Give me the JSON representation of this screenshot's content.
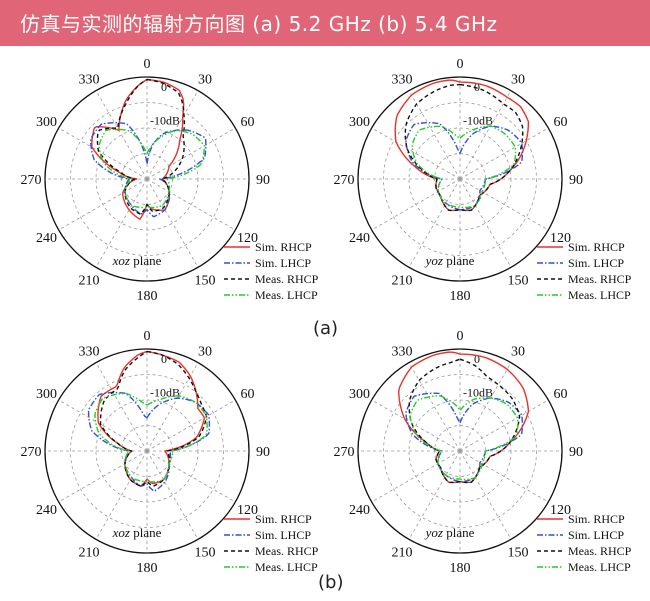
{
  "page": {
    "title": "仿真与实测的辐射方向图 (a) 5.2 GHz (b) 5.4 GHz",
    "sub_caption_a": "(a)",
    "sub_caption_b": "(b)"
  },
  "chart_data": [
    {
      "type": "polar-line",
      "panel": "(a)",
      "plane_label": [
        "xoz",
        " plane"
      ],
      "angle_ticks": [
        "0",
        "30",
        "60",
        "90",
        "120",
        "150",
        "180",
        "210",
        "240",
        "270",
        "300",
        "330"
      ],
      "inner_zero_label": "0",
      "ring_label": "-10dB",
      "rrange_dB": [
        -40,
        0
      ],
      "legend": [
        "Sim. RHCP",
        "Sim. LHCP",
        "Meas. RHCP",
        "Meas. LHCP"
      ],
      "series": [
        {
          "name": "Sim. RHCP",
          "color": "#e8322a",
          "dash": "none",
          "angles": [
            0,
            10,
            20,
            25,
            30,
            40,
            60,
            90,
            120,
            150,
            170,
            180,
            190,
            210,
            240,
            270,
            285,
            300,
            315,
            330,
            345,
            355
          ],
          "values": [
            -1,
            -1.5,
            -3,
            -6,
            -12,
            -20,
            -30,
            -34,
            -30,
            -26,
            -28,
            -30,
            -24,
            -26,
            -29,
            -36,
            -28,
            -15,
            -11,
            -18,
            -8,
            -3
          ]
        },
        {
          "name": "Sim. LHCP",
          "color": "#2f50d8",
          "dash": "6,2,1.5,2",
          "angles": [
            0,
            10,
            20,
            30,
            40,
            55,
            70,
            90,
            110,
            150,
            170,
            180,
            190,
            210,
            240,
            270,
            290,
            305,
            320,
            340,
            355
          ],
          "values": [
            -34,
            -26,
            -21,
            -18,
            -15,
            -12,
            -16,
            -35,
            -31,
            -26,
            -25,
            -28,
            -26,
            -28,
            -30,
            -33,
            -18,
            -13,
            -12,
            -17,
            -30
          ]
        },
        {
          "name": "Meas. RHCP",
          "color": "#111111",
          "dash": "4,3",
          "angles": [
            0,
            10,
            20,
            25,
            30,
            40,
            60,
            90,
            120,
            150,
            170,
            180,
            190,
            210,
            240,
            270,
            285,
            300,
            315,
            330,
            345,
            355
          ],
          "values": [
            -1,
            -2,
            -4,
            -7,
            -11,
            -18,
            -24,
            -34,
            -30,
            -27,
            -27,
            -30,
            -26,
            -27,
            -30,
            -35,
            -29,
            -18,
            -13,
            -17,
            -9,
            -3
          ]
        },
        {
          "name": "Meas. LHCP",
          "color": "#22cc22",
          "dash": "6,2,1.5,2,1.5,2",
          "angles": [
            0,
            10,
            20,
            30,
            45,
            60,
            75,
            90,
            120,
            150,
            180,
            210,
            240,
            270,
            290,
            305,
            320,
            340,
            355
          ],
          "values": [
            -30,
            -26,
            -22,
            -18,
            -15,
            -14,
            -18,
            -32,
            -30,
            -28,
            -29,
            -28,
            -30,
            -34,
            -22,
            -17,
            -15,
            -20,
            -28
          ]
        }
      ]
    },
    {
      "type": "polar-line",
      "panel": "(a)",
      "plane_label": [
        "yoz",
        " plane"
      ],
      "angle_ticks": [
        "0",
        "30",
        "60",
        "90",
        "120",
        "150",
        "180",
        "210",
        "240",
        "270",
        "300",
        "330"
      ],
      "inner_zero_label": "0",
      "ring_label": "-10dB",
      "rrange_dB": [
        -40,
        0
      ],
      "legend": [
        "Sim. RHCP",
        "Sim. LHCP",
        "Meas. RHCP",
        "Meas. LHCP"
      ],
      "series": [
        {
          "name": "Sim. RHCP",
          "color": "#e8322a",
          "dash": "none",
          "angles": [
            0,
            15,
            30,
            40,
            50,
            60,
            80,
            100,
            130,
            160,
            180,
            200,
            230,
            250,
            270,
            285,
            300,
            315,
            330,
            345,
            355
          ],
          "values": [
            -2,
            -2,
            -3,
            -3,
            -5,
            -10,
            -20,
            -28,
            -30,
            -27,
            -28,
            -27,
            -30,
            -30,
            -31,
            -22,
            -11,
            -5,
            -2,
            -1,
            -1
          ]
        },
        {
          "name": "Sim. LHCP",
          "color": "#2f50d8",
          "dash": "6,2,1.5,2",
          "angles": [
            0,
            15,
            30,
            45,
            60,
            75,
            90,
            120,
            150,
            180,
            210,
            240,
            270,
            290,
            305,
            320,
            340,
            355
          ],
          "values": [
            -30,
            -22,
            -16,
            -13,
            -12,
            -15,
            -30,
            -31,
            -28,
            -28,
            -29,
            -30,
            -33,
            -20,
            -14,
            -12,
            -17,
            -28
          ]
        },
        {
          "name": "Meas. RHCP",
          "color": "#111111",
          "dash": "4,3",
          "angles": [
            0,
            15,
            30,
            40,
            50,
            60,
            80,
            100,
            130,
            160,
            180,
            200,
            230,
            250,
            270,
            285,
            300,
            315,
            330,
            345,
            355
          ],
          "values": [
            -3,
            -4,
            -6,
            -6,
            -8,
            -12,
            -20,
            -28,
            -30,
            -27,
            -28,
            -27,
            -30,
            -30,
            -31,
            -24,
            -16,
            -10,
            -6,
            -4,
            -3
          ]
        },
        {
          "name": "Meas. LHCP",
          "color": "#22cc22",
          "dash": "6,2,1.5,2,1.5,2",
          "angles": [
            0,
            15,
            30,
            45,
            60,
            75,
            90,
            120,
            150,
            180,
            210,
            240,
            270,
            290,
            305,
            320,
            340,
            355
          ],
          "values": [
            -24,
            -20,
            -16,
            -15,
            -15,
            -18,
            -30,
            -30,
            -28,
            -29,
            -29,
            -30,
            -33,
            -22,
            -17,
            -15,
            -18,
            -23
          ]
        }
      ]
    },
    {
      "type": "polar-line",
      "panel": "(b)",
      "plane_label": [
        "xoz",
        " plane"
      ],
      "angle_ticks": [
        "0",
        "30",
        "60",
        "90",
        "120",
        "150",
        "180",
        "210",
        "240",
        "270",
        "300",
        "330"
      ],
      "inner_zero_label": "0",
      "ring_label": "-10dB",
      "rrange_dB": [
        -40,
        0
      ],
      "legend": [
        "Sim. RHCP",
        "Sim. LHCP",
        "Meas. RHCP",
        "Meas. LHCP"
      ],
      "series": [
        {
          "name": "Sim. RHCP",
          "color": "#e8322a",
          "dash": "none",
          "angles": [
            0,
            10,
            20,
            30,
            40,
            50,
            60,
            75,
            90,
            120,
            150,
            170,
            180,
            190,
            210,
            240,
            270,
            285,
            300,
            320,
            335,
            345,
            355
          ],
          "values": [
            -1,
            -2,
            -3,
            -6,
            -10,
            -14,
            -14,
            -20,
            -33,
            -30,
            -27,
            -27,
            -29,
            -26,
            -27,
            -30,
            -34,
            -28,
            -18,
            -12,
            -12,
            -6,
            -2
          ]
        },
        {
          "name": "Sim. LHCP",
          "color": "#2f50d8",
          "dash": "6,2,1.5,2",
          "angles": [
            0,
            15,
            30,
            45,
            60,
            75,
            90,
            120,
            150,
            170,
            180,
            190,
            210,
            240,
            270,
            290,
            305,
            320,
            340,
            355
          ],
          "values": [
            -27,
            -21,
            -16,
            -13,
            -12,
            -15,
            -31,
            -30,
            -26,
            -24,
            -27,
            -26,
            -28,
            -30,
            -33,
            -17,
            -12,
            -11,
            -16,
            -26
          ]
        },
        {
          "name": "Meas. RHCP",
          "color": "#111111",
          "dash": "4,3",
          "angles": [
            0,
            10,
            20,
            30,
            40,
            50,
            60,
            75,
            90,
            120,
            150,
            170,
            180,
            190,
            210,
            240,
            270,
            285,
            300,
            320,
            335,
            345,
            355
          ],
          "values": [
            -1,
            -2,
            -4,
            -7,
            -10,
            -12,
            -13,
            -19,
            -32,
            -30,
            -27,
            -26,
            -28,
            -26,
            -27,
            -30,
            -34,
            -28,
            -19,
            -14,
            -13,
            -7,
            -3
          ]
        },
        {
          "name": "Meas. LHCP",
          "color": "#22cc22",
          "dash": "6,2,1.5,2,1.5,2",
          "angles": [
            0,
            15,
            30,
            45,
            60,
            75,
            90,
            120,
            150,
            180,
            210,
            240,
            270,
            290,
            305,
            320,
            340,
            355
          ],
          "values": [
            -22,
            -19,
            -15,
            -13,
            -13,
            -16,
            -30,
            -30,
            -27,
            -28,
            -28,
            -30,
            -33,
            -20,
            -15,
            -13,
            -16,
            -21
          ]
        }
      ]
    },
    {
      "type": "polar-line",
      "panel": "(b)",
      "plane_label": [
        "yoz",
        " plane"
      ],
      "angle_ticks": [
        "0",
        "30",
        "60",
        "90",
        "120",
        "150",
        "180",
        "210",
        "240",
        "270",
        "300",
        "330"
      ],
      "inner_zero_label": "0",
      "ring_label": "-10dB",
      "rrange_dB": [
        -40,
        0
      ],
      "legend": [
        "Sim. RHCP",
        "Sim. LHCP",
        "Meas. RHCP",
        "Meas. LHCP"
      ],
      "series": [
        {
          "name": "Sim. RHCP",
          "color": "#e8322a",
          "dash": "none",
          "angles": [
            0,
            15,
            30,
            45,
            60,
            80,
            100,
            130,
            160,
            180,
            200,
            230,
            250,
            270,
            285,
            300,
            315,
            330,
            345,
            355
          ],
          "values": [
            -2,
            -2,
            -3,
            -5,
            -9,
            -20,
            -28,
            -30,
            -27,
            -28,
            -27,
            -30,
            -30,
            -32,
            -26,
            -15,
            -6,
            -2,
            -1,
            -1
          ]
        },
        {
          "name": "Sim. LHCP",
          "color": "#2f50d8",
          "dash": "6,2,1.5,2",
          "angles": [
            0,
            15,
            30,
            45,
            60,
            75,
            90,
            120,
            150,
            180,
            210,
            240,
            270,
            290,
            305,
            320,
            340,
            355
          ],
          "values": [
            -29,
            -21,
            -16,
            -13,
            -12,
            -15,
            -30,
            -31,
            -28,
            -28,
            -29,
            -30,
            -33,
            -20,
            -14,
            -12,
            -16,
            -27
          ]
        },
        {
          "name": "Meas. RHCP",
          "color": "#111111",
          "dash": "4,3",
          "angles": [
            0,
            10,
            20,
            30,
            45,
            60,
            80,
            100,
            130,
            160,
            180,
            200,
            230,
            250,
            270,
            285,
            300,
            315,
            330,
            345,
            355
          ],
          "values": [
            -4,
            -6,
            -9,
            -10,
            -11,
            -13,
            -20,
            -28,
            -30,
            -27,
            -28,
            -27,
            -30,
            -30,
            -32,
            -26,
            -18,
            -12,
            -8,
            -6,
            -5
          ]
        },
        {
          "name": "Meas. LHCP",
          "color": "#22cc22",
          "dash": "6,2,1.5,2,1.5,2",
          "angles": [
            0,
            15,
            30,
            45,
            60,
            75,
            90,
            120,
            150,
            180,
            210,
            240,
            270,
            290,
            305,
            320,
            340,
            355
          ],
          "values": [
            -24,
            -19,
            -16,
            -14,
            -14,
            -17,
            -30,
            -30,
            -28,
            -29,
            -29,
            -30,
            -33,
            -22,
            -16,
            -14,
            -17,
            -22
          ]
        }
      ]
    }
  ]
}
